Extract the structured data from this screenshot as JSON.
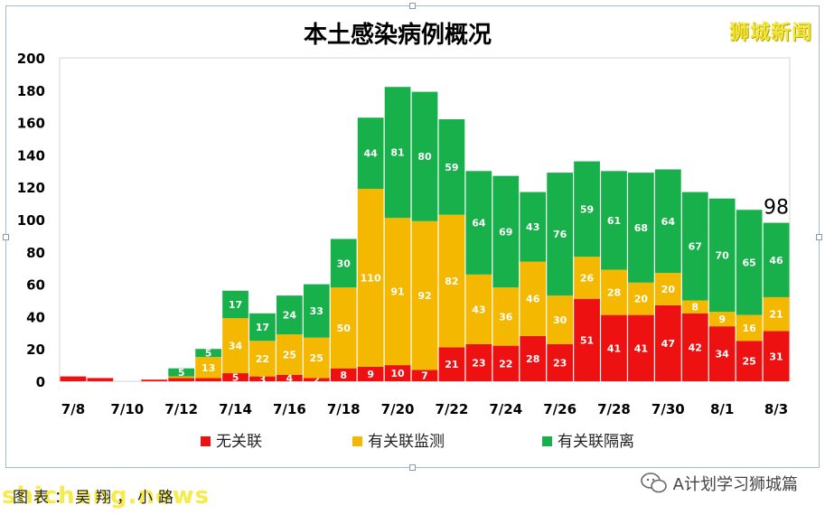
{
  "chart_data": {
    "type": "bar",
    "stacked": true,
    "title": "本土感染病例概况",
    "x": [
      "7/8",
      "7/9",
      "7/10",
      "7/11",
      "7/12",
      "7/13",
      "7/14",
      "7/15",
      "7/16",
      "7/17",
      "7/18",
      "7/19",
      "7/20",
      "7/21",
      "7/22",
      "7/23",
      "7/24",
      "7/25",
      "7/26",
      "7/27",
      "7/28",
      "7/29",
      "7/30",
      "7/31",
      "8/1",
      "8/2",
      "8/3"
    ],
    "tick_labels": [
      "7/8",
      "7/10",
      "7/12",
      "7/14",
      "7/16",
      "7/18",
      "7/20",
      "7/22",
      "7/24",
      "7/26",
      "7/28",
      "7/30",
      "8/1",
      "8/3"
    ],
    "yticks": [
      "0",
      "20",
      "40",
      "60",
      "80",
      "100",
      "120",
      "140",
      "160",
      "180",
      "200"
    ],
    "ylim": [
      0,
      200
    ],
    "grid": false,
    "legend_position": "bottom",
    "series": [
      {
        "name": "无关联",
        "color": "#ee1111",
        "values": [
          3,
          2,
          0,
          1,
          2,
          2,
          5,
          3,
          4,
          2,
          8,
          9,
          10,
          7,
          21,
          23,
          22,
          28,
          23,
          51,
          41,
          41,
          47,
          42,
          34,
          25,
          31
        ],
        "labels": [
          "",
          "",
          "",
          "",
          "",
          "",
          "5",
          "3",
          "4",
          "2",
          "8",
          "9",
          "10",
          "7",
          "21",
          "23",
          "22",
          "28",
          "23",
          "51",
          "41",
          "41",
          "47",
          "42",
          "34",
          "25",
          "31"
        ]
      },
      {
        "name": "有关联监测",
        "color": "#f5b800",
        "values": [
          0,
          0,
          0,
          0,
          1,
          13,
          34,
          22,
          25,
          25,
          50,
          110,
          91,
          92,
          82,
          43,
          36,
          46,
          30,
          26,
          28,
          20,
          20,
          8,
          9,
          16,
          21
        ],
        "labels": [
          "",
          "",
          "",
          "",
          "",
          "13",
          "34",
          "22",
          "25",
          "25",
          "50",
          "110",
          "91",
          "92",
          "82",
          "43",
          "36",
          "46",
          "30",
          "26",
          "28",
          "20",
          "20",
          "8",
          "9",
          "16",
          "21"
        ]
      },
      {
        "name": "有关联隔离",
        "color": "#18b04a",
        "values": [
          0,
          0,
          0,
          0,
          5,
          5,
          17,
          17,
          24,
          33,
          30,
          44,
          81,
          80,
          59,
          64,
          69,
          43,
          76,
          59,
          61,
          68,
          64,
          67,
          70,
          65,
          46
        ],
        "labels": [
          "",
          "",
          "",
          "",
          "5",
          "5",
          "17",
          "17",
          "24",
          "33",
          "30",
          "44",
          "81",
          "80",
          "59",
          "64",
          "69",
          "43",
          "76",
          "59",
          "61",
          "68",
          "64",
          "67",
          "70",
          "65",
          "46"
        ]
      }
    ],
    "annotations": [
      {
        "x": "8/3",
        "text": "98"
      }
    ]
  },
  "brand": "狮城新闻",
  "credit": "图表：吴翔，小路",
  "watermark": "shicheng.news",
  "wechat": {
    "icon": "wechat-icon",
    "account": "A计划学习狮城篇"
  }
}
